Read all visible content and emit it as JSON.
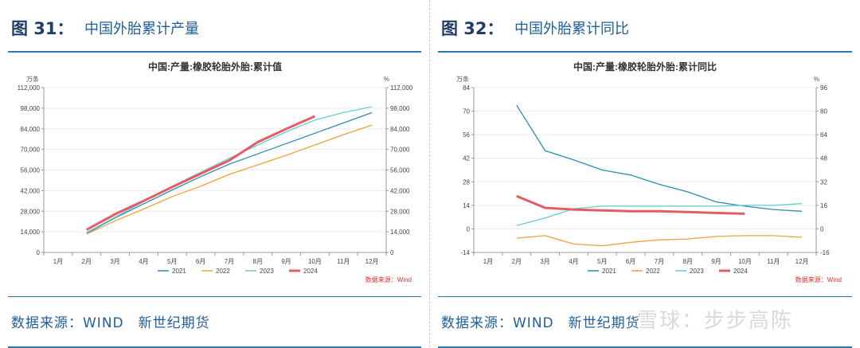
{
  "figures": [
    {
      "label": "图 31：",
      "title": "中国外胎累计产量",
      "footer": "数据来源：WIND　新世纪期货"
    },
    {
      "label": "图 32：",
      "title": "中国外胎累计同比",
      "footer": "数据来源：WIND　新世纪期货"
    }
  ],
  "watermark": "雪球：步步高陈",
  "chart_data": [
    {
      "type": "line",
      "title": "中国:产量:橡胶轮胎外胎:累计值",
      "left_unit": "万条",
      "right_unit": "%",
      "source_note": "数据来源：Wind",
      "categories": [
        "1月",
        "2月",
        "3月",
        "4月",
        "5月",
        "6月",
        "7月",
        "8月",
        "9月",
        "10月",
        "11月",
        "12月"
      ],
      "ylim": [
        0,
        112000
      ],
      "yticks": [
        "0",
        "14,000",
        "28,000",
        "42,000",
        "56,000",
        "70,000",
        "84,000",
        "98,000",
        "112,000"
      ],
      "series": [
        {
          "name": "2021",
          "color": "#2d8cb0",
          "values": [
            null,
            13000,
            23500,
            33000,
            42500,
            51500,
            60000,
            67000,
            74000,
            81000,
            88000,
            95000
          ]
        },
        {
          "name": "2022",
          "color": "#f2a03a",
          "values": [
            null,
            12500,
            21500,
            29500,
            38000,
            45000,
            53000,
            59500,
            66000,
            73000,
            80000,
            86500
          ]
        },
        {
          "name": "2023",
          "color": "#65ccd0",
          "values": [
            null,
            13500,
            24000,
            34500,
            45000,
            54500,
            64000,
            73000,
            82000,
            90000,
            95000,
            99000
          ]
        },
        {
          "name": "2024",
          "color": "#e55b63",
          "values": [
            null,
            15500,
            26000,
            35000,
            44500,
            53500,
            62500,
            75000,
            84000,
            92500,
            null,
            null
          ]
        }
      ]
    },
    {
      "type": "line",
      "title": "中国:产量:橡胶轮胎外胎:累计同比",
      "left_unit": "万条",
      "right_unit": "%",
      "source_note": "数据来源：Wind",
      "categories": [
        "1月",
        "2月",
        "3月",
        "4月",
        "5月",
        "6月",
        "7月",
        "8月",
        "9月",
        "10月",
        "11月",
        "12月"
      ],
      "ylim": [
        -14,
        84
      ],
      "yticks": [
        "-14",
        "0",
        "14",
        "28",
        "42",
        "56",
        "70",
        "84"
      ],
      "right_yticks": [
        "-16",
        "0",
        "16",
        "32",
        "48",
        "64",
        "80",
        "96"
      ],
      "series": [
        {
          "name": "2021",
          "color": "#2d8cb0",
          "values": [
            null,
            73.5,
            46.5,
            41,
            35,
            32,
            26.5,
            22,
            16,
            13.5,
            11.5,
            10.5
          ]
        },
        {
          "name": "2022",
          "color": "#f2a03a",
          "values": [
            null,
            -5.5,
            -4,
            -9,
            -10,
            -8,
            -6.5,
            -6,
            -4.5,
            -4,
            -4,
            -5
          ]
        },
        {
          "name": "2023",
          "color": "#65ccd0",
          "values": [
            null,
            2,
            6.5,
            12,
            13.5,
            13.5,
            13.5,
            13.5,
            13.5,
            14,
            14,
            15
          ]
        },
        {
          "name": "2024",
          "color": "#e55b63",
          "values": [
            null,
            19.5,
            12.5,
            11.5,
            11,
            10.5,
            10.5,
            10,
            9.5,
            9,
            null,
            null
          ]
        }
      ]
    }
  ]
}
